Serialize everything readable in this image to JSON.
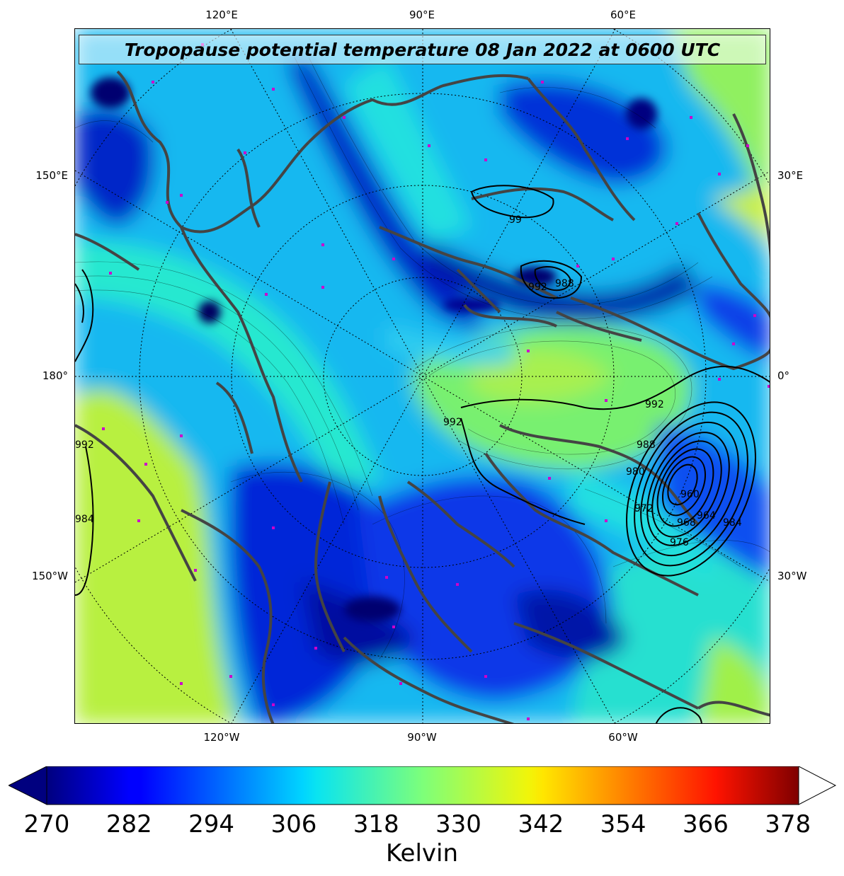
{
  "title": "Tropopause potential temperature 08 Jan 2022 at 0600 UTC",
  "lon_labels": {
    "top": [
      "120°E",
      "90°E",
      "60°E"
    ],
    "bottom": [
      "120°W",
      "90°W",
      "60°W"
    ],
    "left": [
      "150°E",
      "180°",
      "150°W"
    ],
    "right": [
      "30°E",
      "0°",
      "30°W"
    ]
  },
  "pressure_labels": [
    "99",
    "988",
    "992",
    "992",
    "992",
    "988",
    "980",
    "972",
    "976",
    "968",
    "964",
    "960",
    "984",
    "992",
    "984"
  ],
  "colorbar": {
    "ticks": [
      "270",
      "282",
      "294",
      "306",
      "318",
      "330",
      "342",
      "354",
      "366",
      "378"
    ],
    "label": "Kelvin",
    "range": [
      270,
      381
    ],
    "colormap": "jet",
    "extend": "both"
  },
  "colors": {
    "deep_blue": "#0000b0",
    "blue": "#0a3cf0",
    "cyan": "#00c8f0",
    "teal": "#20e8c8",
    "green": "#70f070",
    "yellow_green": "#b8f040",
    "coast": "#444444",
    "station_marker": "#cc00cc"
  }
}
